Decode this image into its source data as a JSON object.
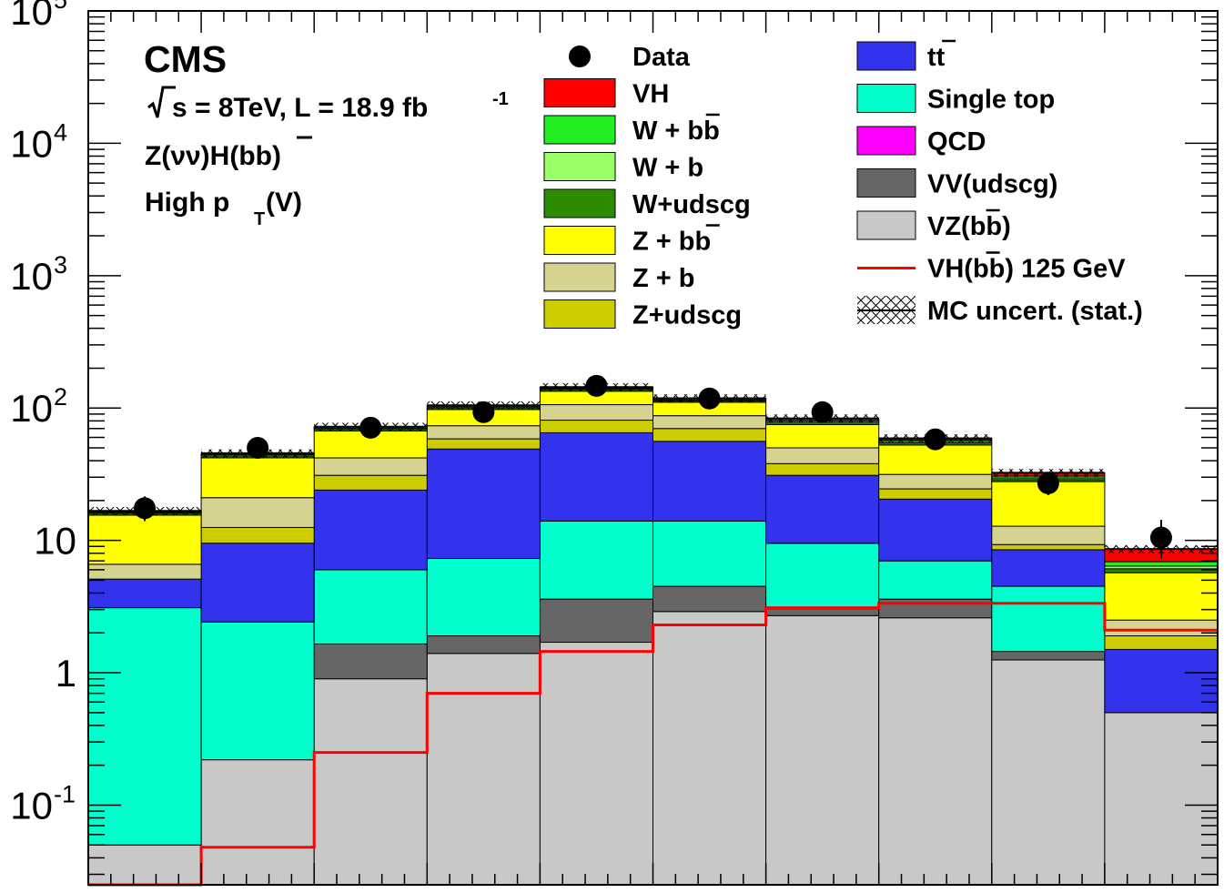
{
  "chart_data": {
    "type": "bar",
    "stacked": true,
    "y_scale": "log",
    "ylim": [
      0.025,
      100000
    ],
    "bins": 10,
    "y_ticks": [
      {
        "value": 0.1,
        "base": "10",
        "exp": "-1"
      },
      {
        "value": 1,
        "base": "1",
        "exp": ""
      },
      {
        "value": 10,
        "base": "10",
        "exp": ""
      },
      {
        "value": 100,
        "base": "10",
        "exp": "2"
      },
      {
        "value": 1000,
        "base": "10",
        "exp": "3"
      },
      {
        "value": 10000,
        "base": "10",
        "exp": "4"
      },
      {
        "value": 100000,
        "base": "10",
        "exp": "5"
      }
    ],
    "annotations": {
      "experiment": "CMS",
      "energy_prefix": "s =  8TeV, L = 18.9 fb",
      "energy_exp": "-1",
      "channel": "Z(νν)H(bb)",
      "region_main": "High p",
      "region_sub": "T",
      "region_end": "(V)"
    },
    "stack_order": [
      "VZ(bb)",
      "VV(udscg)",
      "QCD",
      "Single top",
      "tt",
      "Z+udscg",
      "Z + b",
      "Z + bb",
      "W+udscg",
      "W + b",
      "W + bb",
      "VH"
    ],
    "series": [
      {
        "name": "VZ(bb)",
        "color": "#c8c8c8",
        "values": [
          0.05,
          0.22,
          0.9,
          1.4,
          1.7,
          2.9,
          2.7,
          2.6,
          1.25,
          0.5
        ]
      },
      {
        "name": "VV(udscg)",
        "color": "#666666",
        "values": [
          0,
          0,
          0.75,
          0.5,
          1.9,
          1.6,
          0.35,
          1.0,
          0.2,
          0
        ]
      },
      {
        "name": "QCD",
        "color": "#ff00ff",
        "values": [
          0,
          0,
          0,
          0,
          0,
          0,
          0,
          0,
          0,
          0
        ]
      },
      {
        "name": "Single top",
        "color": "#00ffcc",
        "values": [
          3.05,
          2.2,
          4.35,
          5.4,
          10.4,
          9.5,
          6.45,
          3.4,
          3.05,
          0
        ]
      },
      {
        "name": "tt",
        "color": "#3333ee",
        "values": [
          2.0,
          7.1,
          18.0,
          41.7,
          51.0,
          42.0,
          21.5,
          13.5,
          4.0,
          1.0
        ]
      },
      {
        "name": "Z+udscg",
        "color": "#cccc00",
        "values": [
          0,
          3.0,
          7.0,
          9.5,
          16.0,
          14.0,
          7.0,
          4.0,
          0.8,
          0.4
        ]
      },
      {
        "name": "Z + b",
        "color": "#d6d290",
        "values": [
          1.5,
          8.5,
          11.0,
          15.0,
          25.0,
          17.5,
          12.0,
          7.0,
          3.5,
          0.6
        ]
      },
      {
        "name": "Z + bb",
        "color": "#ffff00",
        "values": [
          8.9,
          21.0,
          25.0,
          24.0,
          28.0,
          23.0,
          25.0,
          21.0,
          15.0,
          3.2
        ]
      },
      {
        "name": "W+udscg",
        "color": "#2d8b00",
        "values": [
          0.5,
          1.5,
          2.0,
          3.0,
          4.0,
          3.0,
          3.0,
          2.0,
          1.0,
          0.4
        ]
      },
      {
        "name": "W + b",
        "color": "#99ff66",
        "values": [
          0.3,
          1.0,
          1.5,
          2.0,
          2.5,
          2.0,
          2.0,
          1.5,
          0.8,
          0.3
        ]
      },
      {
        "name": "W + bb",
        "color": "#22ee22",
        "values": [
          0.3,
          0.8,
          1.5,
          2.0,
          2.5,
          2.0,
          2.0,
          1.5,
          1.0,
          0.5
        ]
      },
      {
        "name": "VH",
        "color": "#ff0000",
        "values": [
          0.1,
          0.2,
          0.3,
          0.4,
          1.0,
          1.0,
          1.5,
          1.6,
          1.8,
          1.7
        ]
      }
    ],
    "signal_line": {
      "name": "VH(bb) 125 GeV",
      "color": "#ff0000",
      "values": [
        0.025,
        0.048,
        0.25,
        0.7,
        1.45,
        2.3,
        3.1,
        3.35,
        3.35,
        2.1
      ]
    },
    "data": {
      "name": "Data",
      "values": [
        17.5,
        50,
        71,
        93,
        147,
        118,
        93,
        58,
        27,
        10.5
      ],
      "err_low": [
        3.5,
        6.0,
        7.0,
        9.0,
        11.0,
        10.0,
        9.0,
        7.0,
        5.0,
        3.2
      ],
      "err_high": [
        4.0,
        7.0,
        8.0,
        10.0,
        12.0,
        11.0,
        10.0,
        8.0,
        6.0,
        3.8
      ]
    },
    "mc_uncert": {
      "name": "MC uncert. (stat.)",
      "rel": 0.07
    },
    "legend": {
      "col1": [
        {
          "key": "Data",
          "kind": "marker",
          "color": "#000000",
          "text": "Data",
          "bar": false
        },
        {
          "key": "VH",
          "kind": "box",
          "color": "#ff0000",
          "text": "VH",
          "bar": false
        },
        {
          "key": "Wbb",
          "kind": "box",
          "color": "#22ee22",
          "text": "W + bb",
          "bar": true
        },
        {
          "key": "Wb",
          "kind": "box",
          "color": "#99ff66",
          "text": "W + b",
          "bar": false
        },
        {
          "key": "Wudscg",
          "kind": "box",
          "color": "#2d8b00",
          "text": "W+udscg",
          "bar": false
        },
        {
          "key": "Zbb",
          "kind": "box",
          "color": "#ffff00",
          "text": "Z + bb",
          "bar": true
        },
        {
          "key": "Zb",
          "kind": "box",
          "color": "#d6d290",
          "text": "Z + b",
          "bar": false
        },
        {
          "key": "Zudscg",
          "kind": "box",
          "color": "#cccc00",
          "text": "Z+udscg",
          "bar": false
        }
      ],
      "col2": [
        {
          "key": "tt",
          "kind": "box",
          "color": "#3333ee",
          "text": "tt",
          "bar": true
        },
        {
          "key": "singletop",
          "kind": "box",
          "color": "#00ffcc",
          "text": "Single top",
          "bar": false
        },
        {
          "key": "qcd",
          "kind": "box",
          "color": "#ff00ff",
          "text": "QCD",
          "bar": false
        },
        {
          "key": "vvudscg",
          "kind": "box",
          "color": "#666666",
          "text": "VV(udscg)",
          "bar": false
        },
        {
          "key": "vzbb",
          "kind": "box",
          "color": "#c8c8c8",
          "text": "VZ(bb)",
          "bar": true
        },
        {
          "key": "signal",
          "kind": "line",
          "color": "#ff0000",
          "text": "VH(bb) 125 GeV",
          "bar": true
        },
        {
          "key": "mcunc",
          "kind": "hatch",
          "color": "#000000",
          "text": "MC uncert. (stat.)",
          "bar": false
        }
      ]
    }
  }
}
